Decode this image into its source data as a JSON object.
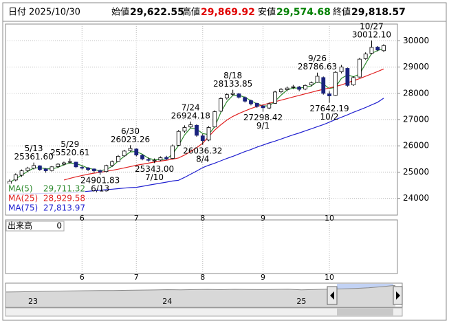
{
  "chart_data": {
    "type": "candlestick",
    "header": {
      "date_label": "日付",
      "date": "2025/10/30",
      "quotes": [
        {
          "label": "始値",
          "value": "29,622.55",
          "color": "#000000"
        },
        {
          "label": "高値",
          "value": "29,869.92",
          "color": "#e00000"
        },
        {
          "label": "安値",
          "value": "29,574.68",
          "color": "#008000"
        },
        {
          "label": "終値",
          "value": "29,818.57",
          "color": "#000000"
        }
      ]
    },
    "categories": [
      null,
      null,
      null,
      null,
      null,
      null,
      null,
      null,
      null,
      null,
      null,
      null,
      "6",
      null,
      null,
      null,
      null,
      null,
      null,
      null,
      null,
      "7",
      null,
      null,
      null,
      null,
      null,
      null,
      null,
      null,
      null,
      null,
      "8",
      null,
      null,
      null,
      null,
      null,
      null,
      null,
      null,
      null,
      "9",
      null,
      null,
      null,
      null,
      null,
      null,
      null,
      null,
      null,
      null,
      "10",
      null,
      null,
      null,
      null,
      null,
      null,
      null,
      null,
      null
    ],
    "candles": [
      [
        24550,
        24720,
        24500,
        24650
      ],
      [
        24700,
        24950,
        24650,
        24900
      ],
      [
        24880,
        25100,
        24820,
        25050
      ],
      [
        25060,
        25200,
        25000,
        25150
      ],
      [
        25150,
        25361.6,
        25100,
        25250
      ],
      [
        25240,
        25260,
        25050,
        25100
      ],
      [
        25120,
        25150,
        24980,
        25050
      ],
      [
        25060,
        25230,
        25020,
        25200
      ],
      [
        25210,
        25340,
        25160,
        25300
      ],
      [
        25300,
        25400,
        25250,
        25350
      ],
      [
        25380,
        25520.61,
        25330,
        25400
      ],
      [
        25380,
        25400,
        25150,
        25200
      ],
      [
        25180,
        25250,
        25100,
        25150
      ],
      [
        25160,
        25190,
        25040,
        25100
      ],
      [
        25120,
        25140,
        24980,
        25050
      ],
      [
        25060,
        25100,
        24901.83,
        25000
      ],
      [
        25020,
        25280,
        24990,
        25250
      ],
      [
        25250,
        25440,
        25200,
        25400
      ],
      [
        25400,
        25650,
        25380,
        25600
      ],
      [
        25620,
        25850,
        25580,
        25800
      ],
      [
        25820,
        26023.26,
        25780,
        25900
      ],
      [
        25880,
        25900,
        25600,
        25650
      ],
      [
        25640,
        25680,
        25450,
        25500
      ],
      [
        25480,
        25560,
        25400,
        25450
      ],
      [
        25440,
        25520,
        25343,
        25450
      ],
      [
        25460,
        25600,
        25420,
        25550
      ],
      [
        25560,
        25620,
        25460,
        25500
      ],
      [
        25520,
        26050,
        25500,
        26000
      ],
      [
        26020,
        26600,
        25990,
        26550
      ],
      [
        26560,
        26780,
        26500,
        26700
      ],
      [
        26720,
        26924.18,
        26680,
        26800
      ],
      [
        26780,
        26820,
        26350,
        26400
      ],
      [
        26380,
        26450,
        26036.32,
        26200
      ],
      [
        26220,
        26750,
        26180,
        26700
      ],
      [
        26720,
        27350,
        26700,
        27300
      ],
      [
        27320,
        27850,
        27280,
        27800
      ],
      [
        27820,
        28000,
        27760,
        27950
      ],
      [
        27960,
        28133.85,
        27900,
        28000
      ],
      [
        27980,
        28020,
        27800,
        27850
      ],
      [
        27840,
        27880,
        27650,
        27700
      ],
      [
        27720,
        27760,
        27540,
        27600
      ],
      [
        27620,
        27640,
        27450,
        27500
      ],
      [
        27520,
        27560,
        27298.42,
        27450
      ],
      [
        27440,
        27650,
        27400,
        27600
      ],
      [
        27620,
        28100,
        27600,
        28050
      ],
      [
        28060,
        28200,
        28000,
        28150
      ],
      [
        28140,
        28260,
        28080,
        28200
      ],
      [
        28220,
        28320,
        28160,
        28250
      ],
      [
        28240,
        28280,
        28080,
        28150
      ],
      [
        28160,
        28340,
        28120,
        28300
      ],
      [
        28320,
        28450,
        28260,
        28400
      ],
      [
        28420,
        28786.63,
        28400,
        28650
      ],
      [
        28600,
        28640,
        27950,
        28000
      ],
      [
        27980,
        28080,
        27642.19,
        27900
      ],
      [
        27920,
        28850,
        27900,
        28800
      ],
      [
        28820,
        29080,
        28760,
        29000
      ],
      [
        28950,
        28980,
        28250,
        28300
      ],
      [
        28320,
        28650,
        28280,
        28600
      ],
      [
        28620,
        29350,
        28600,
        29300
      ],
      [
        29320,
        29560,
        29280,
        29500
      ],
      [
        29520,
        30012.1,
        29480,
        29750
      ],
      [
        29760,
        29800,
        29600,
        29650
      ],
      [
        29622.55,
        29869.92,
        29574.68,
        29818.57
      ]
    ],
    "up_color": "#ffffff",
    "down_color": "#1a237e",
    "series": [
      {
        "name": "MA(5)",
        "color": "#2e8b2e",
        "legend_value": "29,711.32",
        "values": [
          24600,
          24750,
          24880,
          25030,
          25150,
          25170,
          25130,
          25120,
          25180,
          25280,
          25350,
          25320,
          25250,
          25150,
          25100,
          25050,
          25100,
          25220,
          25420,
          25600,
          25770,
          25780,
          25680,
          25530,
          25470,
          25480,
          25500,
          25680,
          26020,
          26420,
          26680,
          26630,
          26470,
          26430,
          26730,
          27270,
          27680,
          27920,
          27930,
          27850,
          27720,
          27600,
          27520,
          27520,
          27700,
          27930,
          28130,
          28200,
          28200,
          28230,
          28280,
          28450,
          28350,
          28180,
          28230,
          28570,
          28700,
          28630,
          28730,
          29130,
          29520,
          29630,
          29711.32
        ]
      },
      {
        "name": "MA(25)",
        "color": "#e02020",
        "legend_value": "28,929.58",
        "values": [
          null,
          null,
          null,
          null,
          null,
          null,
          null,
          null,
          null,
          24700,
          24760,
          24820,
          24870,
          24920,
          24960,
          24990,
          25030,
          25070,
          25110,
          25160,
          25210,
          25260,
          25300,
          25340,
          25380,
          25420,
          25450,
          25490,
          25540,
          25650,
          25780,
          25930,
          26100,
          26350,
          26600,
          26800,
          26980,
          27120,
          27230,
          27330,
          27420,
          27500,
          27560,
          27620,
          27680,
          27740,
          27800,
          27860,
          27920,
          27980,
          28040,
          28100,
          28150,
          28200,
          28260,
          28320,
          28400,
          28480,
          28560,
          28650,
          28740,
          28830,
          28929.58
        ]
      },
      {
        "name": "MA(75)",
        "color": "#2020d0",
        "legend_value": "27,813.97",
        "values": [
          24160,
          24165,
          24170,
          24175,
          24180,
          24185,
          24190,
          24195,
          24200,
          24205,
          24210,
          24230,
          24250,
          24270,
          24290,
          24310,
          24330,
          24350,
          24370,
          24390,
          24410,
          24420,
          24460,
          24500,
          24540,
          24580,
          24620,
          24660,
          24690,
          24800,
          24920,
          25040,
          25170,
          25260,
          25340,
          25430,
          25520,
          25600,
          25690,
          25780,
          25860,
          25950,
          26030,
          26110,
          26180,
          26260,
          26340,
          26420,
          26490,
          26570,
          26650,
          26730,
          26810,
          26900,
          27000,
          27090,
          27180,
          27280,
          27370,
          27460,
          27560,
          27660,
          27813.97
        ]
      }
    ],
    "annotations": [
      {
        "date": "5/13",
        "value": 25361.6,
        "label": "25361.60"
      },
      {
        "date": "5/29",
        "value": 25520.61,
        "label": "25520.61"
      },
      {
        "date": "6/13",
        "value": 24901.83,
        "label": "24901.83"
      },
      {
        "date": "6/30",
        "value": 26023.26,
        "label": "26023.26"
      },
      {
        "date": "7/10",
        "value": 25343,
        "label": "25343.00"
      },
      {
        "date": "7/24",
        "value": 26924.18,
        "label": "26924.18"
      },
      {
        "date": "8/4",
        "value": 26036.32,
        "label": "26036.32"
      },
      {
        "date": "8/18",
        "value": 28133.85,
        "label": "28133.85"
      },
      {
        "date": "9/1",
        "value": 27298.42,
        "label": "27298.42"
      },
      {
        "date": "9/26",
        "value": 28786.63,
        "label": "28786.63"
      },
      {
        "date": "10/2",
        "value": 27642.19,
        "label": "27642.19"
      },
      {
        "date": "10/27",
        "value": 30012.1,
        "label": "30012.10"
      }
    ],
    "ylim": [
      23363,
      30637
    ],
    "yticks": [
      24000,
      25000,
      26000,
      27000,
      28000,
      29000,
      30000
    ],
    "grid": true,
    "volume": {
      "label": "出来高",
      "value": 0
    },
    "navigator": {
      "categories": [
        null,
        null,
        "23",
        null,
        null,
        null,
        null,
        null,
        null,
        null,
        null,
        null,
        "24",
        null,
        null,
        null,
        null,
        null,
        null,
        null,
        null,
        null,
        "25",
        null,
        null,
        null,
        null,
        null,
        null,
        null
      ],
      "values": [
        20500,
        20800,
        21000,
        21400,
        21800,
        22000,
        22300,
        22600,
        22500,
        22900,
        23200,
        23400,
        23800,
        23600,
        23900,
        24100,
        23800,
        24200,
        24000,
        23900,
        24100,
        24300,
        23500,
        24000,
        24500,
        24800,
        25500,
        26500,
        28000,
        29818.57
      ],
      "ylim": [
        0,
        32000
      ]
    }
  }
}
